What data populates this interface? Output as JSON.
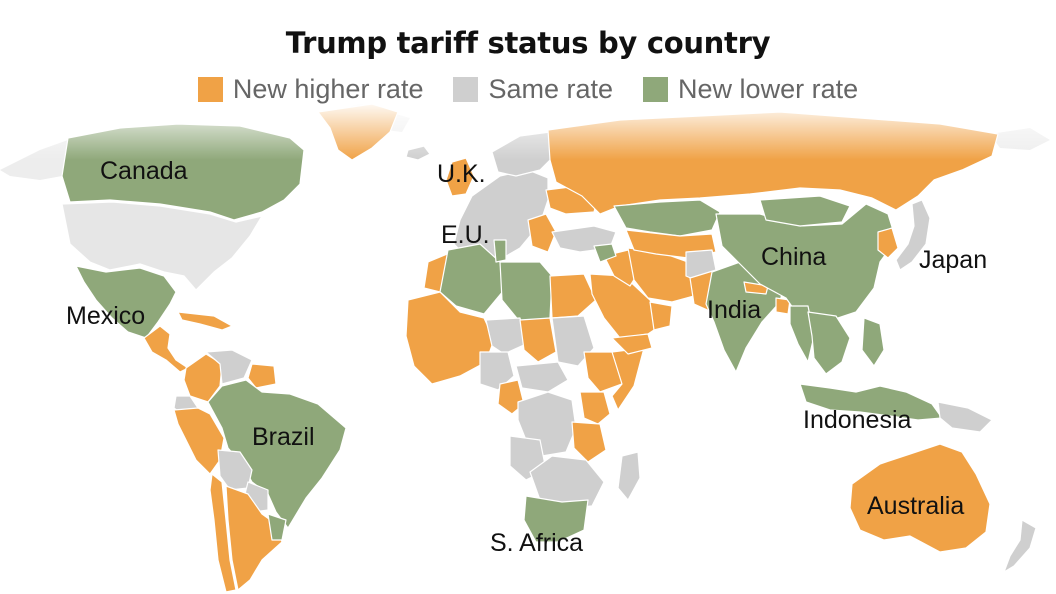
{
  "title": "Trump tariff status by country",
  "legend": [
    {
      "key": "higher",
      "label": "New higher rate",
      "color": "#F0A246"
    },
    {
      "key": "same",
      "label": "Same rate",
      "color": "#CFCFCF"
    },
    {
      "key": "lower",
      "label": "New lower rate",
      "color": "#8FA87A"
    }
  ],
  "colors": {
    "higher": "#F0A246",
    "same": "#CFCFCF",
    "lower": "#8FA87A",
    "arctic": "#EDEDED",
    "us": "#E6E6E6",
    "border": "#ffffff"
  },
  "country_labels": {
    "canada": "Canada",
    "uk": "U.K.",
    "eu": "E.U.",
    "mexico": "Mexico",
    "china": "China",
    "japan": "Japan",
    "india": "India",
    "brazil": "Brazil",
    "indonesia": "Indonesia",
    "australia": "Australia",
    "south_africa": "S. Africa"
  },
  "country_status": {
    "Canada": "lower",
    "United States": "same",
    "Mexico": "lower",
    "Greenland": "higher",
    "Caribbean islands": "higher",
    "Central America": "higher",
    "Colombia": "higher",
    "Venezuela": "same",
    "Guyana": "higher",
    "Ecuador": "same",
    "Peru": "higher",
    "Brazil": "lower",
    "Bolivia": "same",
    "Paraguay": "same",
    "Chile": "higher",
    "Argentina": "higher",
    "Uruguay": "lower",
    "Iceland": "same",
    "United Kingdom": "higher",
    "European Union": "same",
    "Norway": "same",
    "Balkans": "higher",
    "Ukraine": "higher",
    "Russia": "higher",
    "Turkey": "same",
    "Morocco": "higher",
    "Algeria": "lower",
    "Libya": "lower",
    "Tunisia": "lower",
    "Egypt": "higher",
    "West Africa": "higher",
    "Niger": "same",
    "Chad": "higher",
    "Sudan": "same",
    "Ethiopia": "higher",
    "Somalia": "higher",
    "Nigeria": "same",
    "Cameroon": "higher",
    "Central Africa": "same",
    "DR Congo": "same",
    "Kenya": "higher",
    "Tanzania": "higher",
    "Angola": "same",
    "Southern Africa": "same",
    "South Africa": "lower",
    "Madagascar": "same",
    "Saudi Arabia": "higher",
    "Yemen": "higher",
    "Oman": "higher",
    "Iraq": "higher",
    "Syria": "lower",
    "Iran": "higher",
    "Kazakhstan": "lower",
    "Central Asia": "higher",
    "Afghanistan": "same",
    "Pakistan": "higher",
    "India": "lower",
    "Nepal": "higher",
    "Bangladesh": "higher",
    "China": "lower",
    "Mongolia": "lower",
    "Korea": "higher",
    "Japan": "same",
    "Myanmar": "lower",
    "Southeast Asia": "lower",
    "Philippines": "lower",
    "Indonesia": "lower",
    "Papua New Guinea": "same",
    "Australia": "higher",
    "New Zealand": "same"
  }
}
